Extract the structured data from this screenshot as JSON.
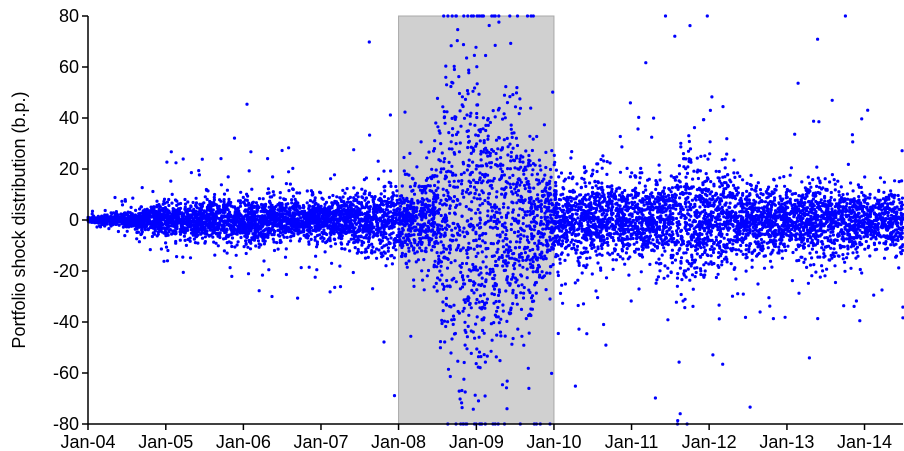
{
  "chart_data": {
    "type": "scatter",
    "title": "",
    "xlabel": "",
    "ylabel": "Portfolio shock distribution (b.p.)",
    "x_range": [
      "2004-01-01",
      "2014-07-01"
    ],
    "ylim": [
      -80,
      80
    ],
    "y_ticks": [
      -80,
      -60,
      -40,
      -20,
      0,
      20,
      40,
      60,
      80
    ],
    "x_ticks": [
      {
        "label": "Jan-04",
        "date": "2004-01-01"
      },
      {
        "label": "Jan-05",
        "date": "2005-01-01"
      },
      {
        "label": "Jan-06",
        "date": "2006-01-01"
      },
      {
        "label": "Jan-07",
        "date": "2007-01-01"
      },
      {
        "label": "Jan-08",
        "date": "2008-01-01"
      },
      {
        "label": "Jan-09",
        "date": "2009-01-01"
      },
      {
        "label": "Jan-10",
        "date": "2010-01-01"
      },
      {
        "label": "Jan-11",
        "date": "2011-01-01"
      },
      {
        "label": "Jan-12",
        "date": "2012-01-01"
      },
      {
        "label": "Jan-13",
        "date": "2013-01-01"
      },
      {
        "label": "Jan-14",
        "date": "2014-01-01"
      }
    ],
    "shaded_region": {
      "x_start": "2008-01-01",
      "x_end": "2010-01-01",
      "color": "#d0d0d0"
    },
    "marker_color": "#0000ff",
    "grid": false,
    "volatility_profile": [
      {
        "date": "2004-01-01",
        "spread": 0.3
      },
      {
        "date": "2004-06-01",
        "spread": 1.2
      },
      {
        "date": "2005-01-01",
        "spread": 3.5
      },
      {
        "date": "2006-01-01",
        "spread": 4.5
      },
      {
        "date": "2007-01-01",
        "spread": 4.0
      },
      {
        "date": "2007-06-01",
        "spread": 5.0
      },
      {
        "date": "2008-01-01",
        "spread": 7.0
      },
      {
        "date": "2008-06-01",
        "spread": 8.0
      },
      {
        "date": "2008-09-01",
        "spread": 30.0
      },
      {
        "date": "2009-03-01",
        "spread": 32.0
      },
      {
        "date": "2009-07-01",
        "spread": 22.0
      },
      {
        "date": "2010-01-01",
        "spread": 9.0
      },
      {
        "date": "2010-06-01",
        "spread": 8.0
      },
      {
        "date": "2011-01-01",
        "spread": 7.0
      },
      {
        "date": "2011-06-01",
        "spread": 8.0
      },
      {
        "date": "2011-09-01",
        "spread": 14.0
      },
      {
        "date": "2012-01-01",
        "spread": 10.0
      },
      {
        "date": "2012-06-01",
        "spread": 7.0
      },
      {
        "date": "2013-01-01",
        "spread": 6.0
      },
      {
        "date": "2013-06-01",
        "spread": 8.0
      },
      {
        "date": "2014-01-01",
        "spread": 6.0
      },
      {
        "date": "2014-07-01",
        "spread": 6.0
      }
    ],
    "point_count": 9000
  }
}
